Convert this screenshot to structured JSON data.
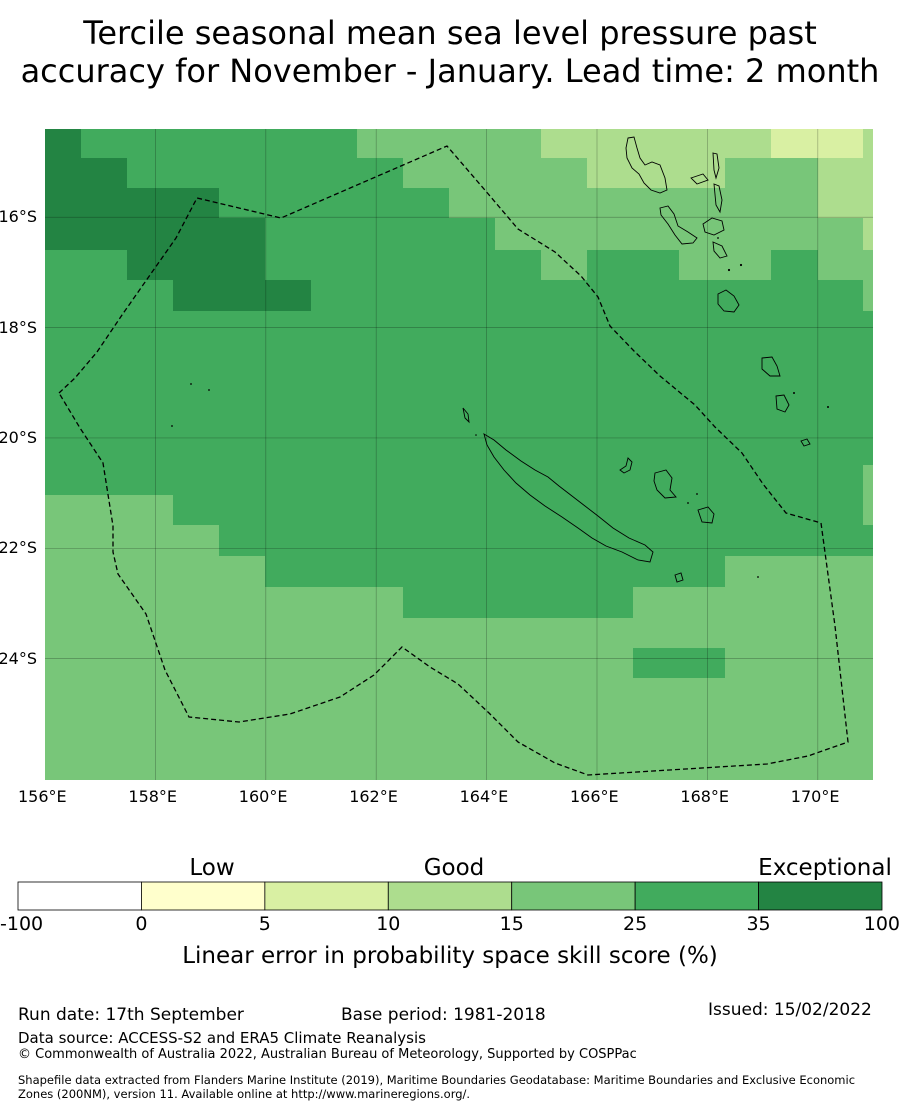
{
  "title_lines": [
    "Tercile seasonal mean sea level pressure past",
    "accuracy for November - January. Lead time: 2 month"
  ],
  "map": {
    "lon_range": [
      156,
      171
    ],
    "lat_range": [
      -26.2,
      -14.4
    ],
    "x_ticks": [
      {
        "lon": 156,
        "label": "156°E"
      },
      {
        "lon": 158,
        "label": "158°E"
      },
      {
        "lon": 160,
        "label": "160°E"
      },
      {
        "lon": 162,
        "label": "162°E"
      },
      {
        "lon": 164,
        "label": "164°E"
      },
      {
        "lon": 166,
        "label": "166°E"
      },
      {
        "lon": 168,
        "label": "168°E"
      },
      {
        "lon": 170,
        "label": "170°E"
      }
    ],
    "y_ticks": [
      {
        "lat": -16,
        "label": "16°S"
      },
      {
        "lat": -18,
        "label": "18°S"
      },
      {
        "lat": -20,
        "label": "20°S"
      },
      {
        "lat": -22,
        "label": "22°S"
      },
      {
        "lat": -24,
        "label": "24°S"
      }
    ],
    "skill_bands": {
      "15-25": "#78c679",
      "25-35": "#41ab5d",
      "35-100": "#238443",
      "10-15": "#addd8e",
      "5-10": "#d9f0a3"
    }
  },
  "colorbar": {
    "categories": [
      {
        "label": "Low",
        "pos": 212
      },
      {
        "label": "Good",
        "pos": 454
      },
      {
        "label": "Exceptional",
        "pos": 825
      }
    ],
    "bins": [
      {
        "from": "-100",
        "to": "0",
        "color": "#ffffff"
      },
      {
        "from": "0",
        "to": "5",
        "color": "#ffffcc"
      },
      {
        "from": "5",
        "to": "10",
        "color": "#d9f0a3"
      },
      {
        "from": "10",
        "to": "15",
        "color": "#addd8e"
      },
      {
        "from": "15",
        "to": "25",
        "color": "#78c679"
      },
      {
        "from": "25",
        "to": "35",
        "color": "#41ab5d"
      },
      {
        "from": "35",
        "to": "100",
        "color": "#238443"
      }
    ],
    "tick_labels": [
      "-100",
      "0",
      "5",
      "10",
      "15",
      "25",
      "35",
      "100"
    ],
    "label": "Linear error in probability space skill score (%)"
  },
  "footer": {
    "run_date": "Run date: 17th September",
    "base_period": "Base period: 1981-2018",
    "issued": "Issued: 15/02/2022",
    "data_source": "Data source: ACCESS-S2 and ERA5 Climate Reanalysis",
    "copyright": "© Commonwealth of Australia 2022, Australian Bureau of Meteorology, Supported by COSPPac",
    "shapefile_line1": "Shapefile data extracted from Flanders Marine Institute (2019), Maritime Boundaries Geodatabase: Maritime Boundaries and Exclusive Economic",
    "shapefile_line2": "Zones (200NM), version 11. Available online at http://www.marineregions.org/."
  }
}
